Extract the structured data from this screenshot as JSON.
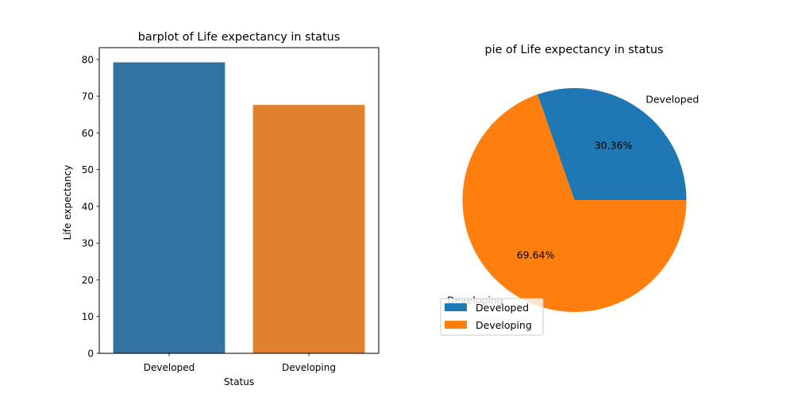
{
  "chart_data": [
    {
      "type": "bar",
      "title": "barplot of Life expectancy in status",
      "xlabel": "Status",
      "ylabel": "Life expectancy",
      "categories": [
        "Developed",
        "Developing"
      ],
      "values": [
        79.2,
        67.6
      ],
      "colors": [
        "#3274a1",
        "#e1812c"
      ],
      "ylim": [
        0,
        83.2
      ],
      "yticks": [
        0,
        10,
        20,
        30,
        40,
        50,
        60,
        70,
        80
      ],
      "grid": false
    },
    {
      "type": "pie",
      "title": "pie of Life expectancy in status",
      "labels": [
        "Developed",
        "Developing"
      ],
      "values": [
        30.36,
        69.64
      ],
      "pct_labels": [
        "30.36%",
        "69.64%"
      ],
      "colors": [
        "#1f77b4",
        "#ff7f0e"
      ],
      "legend": {
        "placement": "lower-left",
        "entries": [
          "Developed",
          "Developing"
        ]
      }
    }
  ]
}
